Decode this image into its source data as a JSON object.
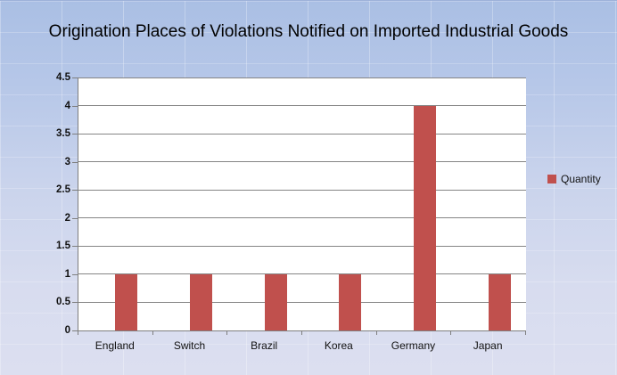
{
  "chart_data": {
    "type": "bar",
    "title": "Origination Places of Violations Notified on Imported Industrial Goods",
    "categories": [
      "England",
      "Switch",
      "Brazil",
      "Korea",
      "Germany",
      "Japan"
    ],
    "series": [
      {
        "name": "Quantity",
        "values": [
          1,
          1,
          1,
          1,
          4,
          1
        ]
      }
    ],
    "xlabel": "",
    "ylabel": "",
    "ylim": [
      0,
      4.5
    ],
    "y_ticks": [
      0,
      0.5,
      1,
      1.5,
      2,
      2.5,
      3,
      3.5,
      4,
      4.5
    ],
    "grid": "horizontal",
    "legend_position": "right",
    "bar_color": "#C0504D",
    "plot_background": "#FFFFFF",
    "gridline_color": "#858585",
    "axis_color": "#7E7E7E",
    "background_gradient_top": "#AABFE4",
    "background_gradient_bottom": "#DCDFF0"
  }
}
